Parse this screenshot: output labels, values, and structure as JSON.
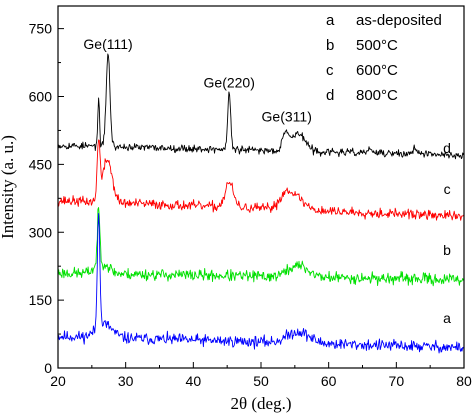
{
  "chart_data": {
    "type": "line",
    "xlabel": "2θ (deg.)",
    "ylabel": "Intensity (a. u.)",
    "xlim": [
      20,
      80
    ],
    "ylim": [
      0,
      800
    ],
    "xticks": [
      20,
      30,
      40,
      50,
      60,
      70,
      80
    ],
    "yticks": [
      0,
      150,
      300,
      450,
      600,
      750
    ],
    "series": [
      {
        "name": "a",
        "color": "#0000ff",
        "baseline": 70,
        "end": 45,
        "noise": 14,
        "seed": 11,
        "peaks": [
          [
            26.0,
            260,
            0.18
          ],
          [
            26.8,
            30,
            1.2
          ],
          [
            55.5,
            25,
            1.6
          ]
        ]
      },
      {
        "name": "b",
        "color": "#00e000",
        "baseline": 210,
        "end": 195,
        "noise": 14,
        "seed": 23,
        "peaks": [
          [
            26.0,
            120,
            0.18
          ],
          [
            26.5,
            25,
            1.0
          ],
          [
            55.5,
            25,
            1.5
          ]
        ]
      },
      {
        "name": "c",
        "color": "#ff0000",
        "baseline": 370,
        "end": 335,
        "noise": 12,
        "seed": 37,
        "peaks": [
          [
            26.0,
            130,
            0.2
          ],
          [
            27.3,
            95,
            0.7
          ],
          [
            45.3,
            55,
            0.6
          ],
          [
            53.8,
            35,
            1.0
          ],
          [
            55.5,
            20,
            1.2
          ]
        ]
      },
      {
        "name": "d",
        "color": "#000000",
        "baseline": 492,
        "end": 470,
        "noise": 9,
        "seed": 53,
        "peaks": [
          [
            26.0,
            110,
            0.12
          ],
          [
            27.4,
            205,
            0.28
          ],
          [
            45.3,
            125,
            0.22
          ],
          [
            53.6,
            40,
            0.45
          ],
          [
            55.5,
            40,
            1.0
          ],
          [
            66.1,
            10,
            0.3
          ],
          [
            72.8,
            15,
            0.3
          ]
        ]
      }
    ],
    "peak_labels": [
      {
        "text": "Ge(111)",
        "x": 27.4,
        "y": 705
      },
      {
        "text": "Ge(220)",
        "x": 45.3,
        "y": 620
      },
      {
        "text": "Ge(311)",
        "x": 53.8,
        "y": 545
      }
    ],
    "curve_labels": [
      {
        "text": "a",
        "x": 77.5,
        "y": 100
      },
      {
        "text": "b",
        "x": 77.5,
        "y": 250
      },
      {
        "text": "c",
        "x": 77.5,
        "y": 385
      },
      {
        "text": "d",
        "x": 77.5,
        "y": 475
      }
    ],
    "legend": {
      "position": "top-right",
      "entries": [
        {
          "key": "a",
          "label": "as-deposited"
        },
        {
          "key": "b",
          "label": "500°C"
        },
        {
          "key": "c",
          "label": "600°C"
        },
        {
          "key": "d",
          "label": "800°C"
        }
      ]
    }
  }
}
